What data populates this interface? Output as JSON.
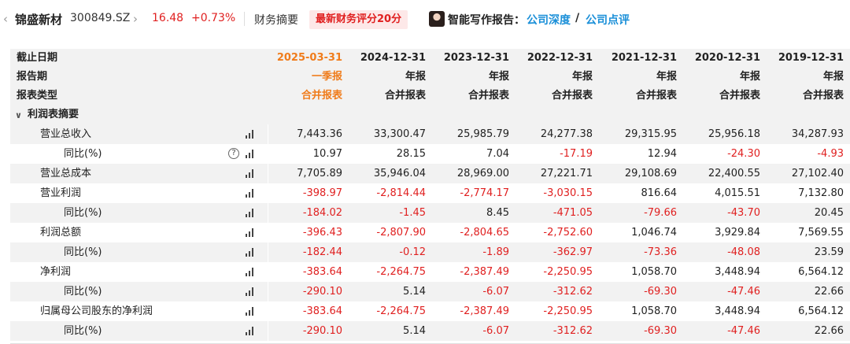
{
  "header": {
    "stock_name": "锦盛新材",
    "stock_code": "300849.SZ",
    "price": "16.48",
    "change": "+0.73%",
    "fin_summary": "财务摘要",
    "score_badge": "最新财务评分20分",
    "ai_label": "智能写作报告：",
    "link_deep": "公司深度",
    "link_slash": "/",
    "link_comment": "公司点评",
    "icons": {
      "prev": "chevron-left-icon",
      "next": "chevron-right-icon",
      "avatar": "author-avatar"
    }
  },
  "table": {
    "header_rows": [
      {
        "label": "截止日期",
        "values": [
          "2025-03-31",
          "2024-12-31",
          "2023-12-31",
          "2022-12-31",
          "2021-12-31",
          "2020-12-31",
          "2019-12-31"
        ]
      },
      {
        "label": "报告期",
        "values": [
          "一季报",
          "年报",
          "年报",
          "年报",
          "年报",
          "年报",
          "年报"
        ]
      },
      {
        "label": "报表类型",
        "values": [
          "合并报表",
          "合并报表",
          "合并报表",
          "合并报表",
          "合并报表",
          "合并报表",
          "合并报表"
        ]
      }
    ],
    "section": {
      "label": "利润表摘要",
      "icon": "chevron-down-icon"
    },
    "rows": [
      {
        "label": "营业总收入",
        "indent": 1,
        "help": false,
        "values": [
          "7,443.36",
          "33,300.47",
          "25,985.79",
          "24,277.38",
          "29,315.95",
          "25,956.18",
          "34,287.93"
        ]
      },
      {
        "label": "同比(%)",
        "indent": 2,
        "help": true,
        "values": [
          "10.97",
          "28.15",
          "7.04",
          "-17.19",
          "12.94",
          "-24.30",
          "-4.93"
        ]
      },
      {
        "label": "营业总成本",
        "indent": 1,
        "help": false,
        "values": [
          "7,705.89",
          "35,946.04",
          "28,969.00",
          "27,221.71",
          "29,108.69",
          "22,400.55",
          "27,102.40"
        ]
      },
      {
        "label": "营业利润",
        "indent": 1,
        "help": false,
        "values": [
          "-398.97",
          "-2,814.44",
          "-2,774.17",
          "-3,030.15",
          "816.64",
          "4,015.51",
          "7,132.80"
        ]
      },
      {
        "label": "同比(%)",
        "indent": 2,
        "help": false,
        "values": [
          "-184.02",
          "-1.45",
          "8.45",
          "-471.05",
          "-79.66",
          "-43.70",
          "20.45"
        ]
      },
      {
        "label": "利润总额",
        "indent": 1,
        "help": false,
        "values": [
          "-396.43",
          "-2,807.90",
          "-2,804.65",
          "-2,752.60",
          "1,046.74",
          "3,929.84",
          "7,569.55"
        ]
      },
      {
        "label": "同比(%)",
        "indent": 2,
        "help": false,
        "values": [
          "-182.44",
          "-0.12",
          "-1.89",
          "-362.97",
          "-73.36",
          "-48.08",
          "23.59"
        ]
      },
      {
        "label": "净利润",
        "indent": 1,
        "help": false,
        "values": [
          "-383.64",
          "-2,264.75",
          "-2,387.49",
          "-2,250.95",
          "1,058.70",
          "3,448.94",
          "6,564.12"
        ]
      },
      {
        "label": "同比(%)",
        "indent": 2,
        "help": false,
        "values": [
          "-290.10",
          "5.14",
          "-6.07",
          "-312.62",
          "-69.30",
          "-47.46",
          "22.66"
        ]
      },
      {
        "label": "归属母公司股东的净利润",
        "indent": 1,
        "help": false,
        "values": [
          "-383.64",
          "-2,264.75",
          "-2,387.49",
          "-2,250.95",
          "1,058.70",
          "3,448.94",
          "6,564.12"
        ]
      },
      {
        "label": "同比(%)",
        "indent": 2,
        "help": false,
        "values": [
          "-290.10",
          "5.14",
          "-6.07",
          "-312.62",
          "-69.30",
          "-47.46",
          "22.66"
        ]
      }
    ]
  },
  "colors": {
    "negative": "#e02020",
    "accent_date": "#f07c1b",
    "link": "#1a8fd8",
    "badge_bg": "#fde8e8"
  }
}
